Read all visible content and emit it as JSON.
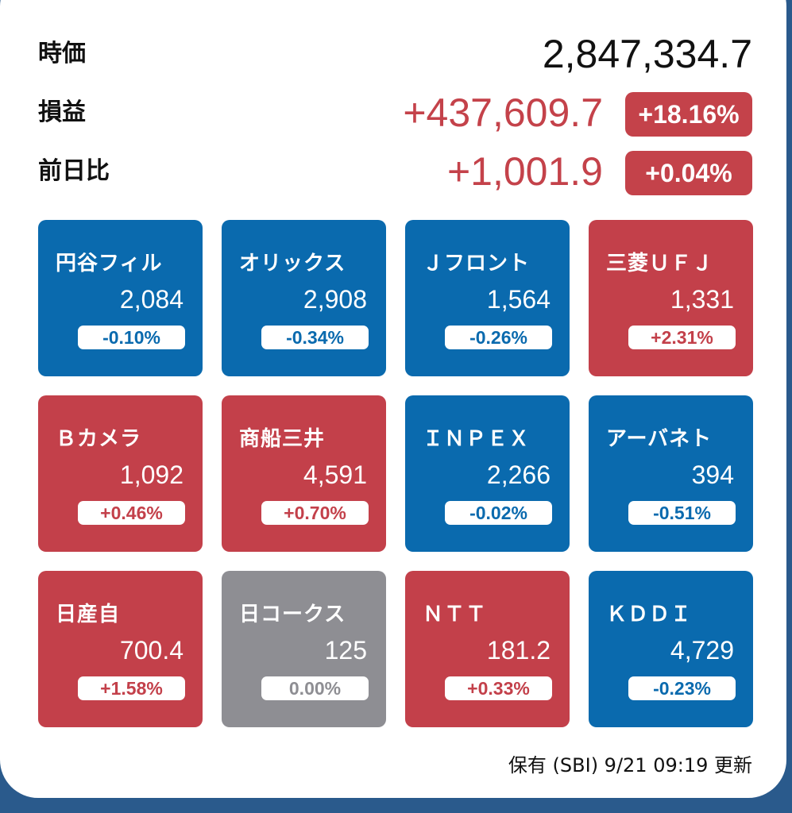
{
  "summary": {
    "market_value": {
      "label": "時価",
      "value": "2,847,334.7"
    },
    "profit_loss": {
      "label": "損益",
      "value": "+437,609.7",
      "percent": "+18.16%"
    },
    "day_change": {
      "label": "前日比",
      "value": "+1,001.9",
      "percent": "+0.04%"
    }
  },
  "colors": {
    "up": "#c3404a",
    "down": "#0a6aae",
    "flat": "#8e8e93"
  },
  "stocks": [
    {
      "name": "円谷フィル",
      "price": "2,084",
      "change": "-0.10%",
      "trend": "down"
    },
    {
      "name": "オリックス",
      "price": "2,908",
      "change": "-0.34%",
      "trend": "down"
    },
    {
      "name": "Ｊフロント",
      "price": "1,564",
      "change": "-0.26%",
      "trend": "down"
    },
    {
      "name": "三菱ＵＦＪ",
      "price": "1,331",
      "change": "+2.31%",
      "trend": "up"
    },
    {
      "name": "Ｂカメラ",
      "price": "1,092",
      "change": "+0.46%",
      "trend": "up"
    },
    {
      "name": "商船三井",
      "price": "4,591",
      "change": "+0.70%",
      "trend": "up"
    },
    {
      "name": "ＩＮＰＥＸ",
      "price": "2,266",
      "change": "-0.02%",
      "trend": "down"
    },
    {
      "name": "アーバネト",
      "price": "394",
      "change": "-0.51%",
      "trend": "down"
    },
    {
      "name": "日産自",
      "price": "700.4",
      "change": "+1.58%",
      "trend": "up"
    },
    {
      "name": "日コークス",
      "price": "125",
      "change": "0.00%",
      "trend": "flat"
    },
    {
      "name": "ＮＴＴ",
      "price": "181.2",
      "change": "+0.33%",
      "trend": "up"
    },
    {
      "name": "ＫＤＤＩ",
      "price": "4,729",
      "change": "-0.23%",
      "trend": "down"
    }
  ],
  "footer": "保有 (SBI) 9/21 09:19 更新"
}
